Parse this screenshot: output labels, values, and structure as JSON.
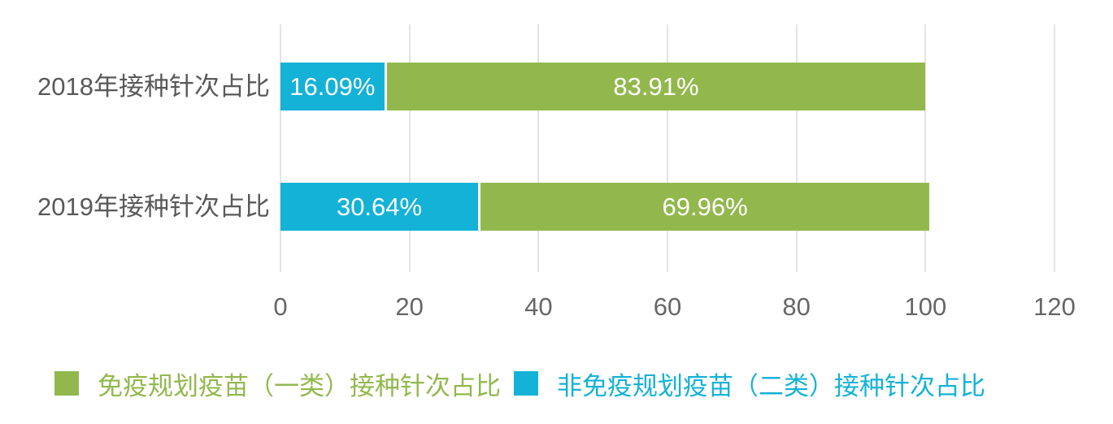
{
  "chart_data": {
    "type": "bar",
    "orientation": "horizontal",
    "stacked": true,
    "title": "",
    "xlabel": "",
    "ylabel": "",
    "categories": [
      "2018年接种针次占比",
      "2019年接种针次占比"
    ],
    "series": [
      {
        "name": "非免疫规划疫苗（二类）接种针次占比",
        "color": "#14b2d6",
        "values": [
          16.09,
          30.64
        ],
        "labels": [
          "16.09%",
          "30.64%"
        ]
      },
      {
        "name": "免疫规划疫苗（一类）接种针次占比",
        "color": "#92b84d",
        "values": [
          83.91,
          69.96
        ],
        "labels": [
          "83.91%",
          "69.96%"
        ]
      }
    ],
    "x_axis": {
      "min": 0,
      "max": 120,
      "ticks": [
        0,
        20,
        40,
        60,
        80,
        100,
        120
      ],
      "tick_labels": [
        "0",
        "20",
        "40",
        "60",
        "80",
        "100",
        "120"
      ]
    },
    "grid": true,
    "legend_position": "bottom",
    "legend": [
      {
        "label": "免疫规划疫苗（一类）接种针次占比",
        "color": "#92b84d"
      },
      {
        "label": "非免疫规划疫苗（二类）接种针次占比",
        "color": "#14b2d6"
      }
    ]
  },
  "colors": {
    "category_label": "#595959",
    "axis_label": "#666666",
    "gridline": "#e4e4e4",
    "bar_value_label": "#ffffff",
    "background": "#ffffff"
  }
}
